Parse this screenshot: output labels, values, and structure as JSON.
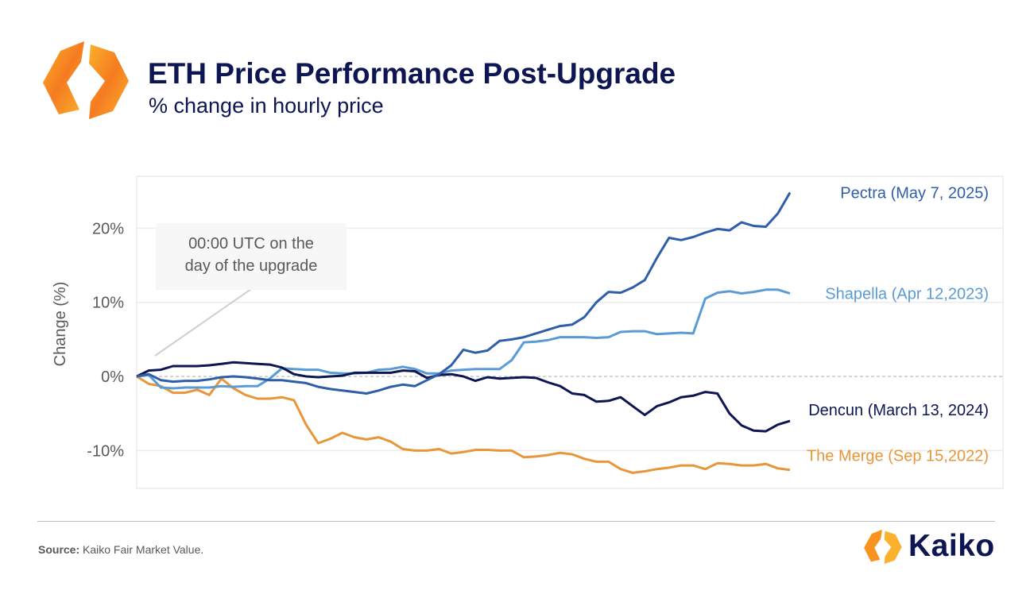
{
  "header": {
    "title": "ETH Price Performance Post-Upgrade",
    "subtitle": "% change in hourly price"
  },
  "footer": {
    "source_label": "Source:",
    "source_text": "Kaiko Fair Market Value.",
    "brand": "Kaiko"
  },
  "chart_data": {
    "type": "line",
    "title": "ETH Price Performance Post-Upgrade",
    "subtitle": "% change in hourly price",
    "xlabel": "",
    "ylabel": "Change (%)",
    "ylim": [
      -15.1,
      27.0
    ],
    "yticks": [
      {
        "value": 20,
        "label": "20%"
      },
      {
        "value": 10,
        "label": "10%"
      },
      {
        "value": 0,
        "label": "0%"
      },
      {
        "value": -10,
        "label": "-10%"
      }
    ],
    "grid": true,
    "annotation": "00:00 UTC on the day of the upgrade",
    "x": [
      0,
      1,
      2,
      3,
      4,
      5,
      6,
      7,
      8,
      9,
      10,
      11,
      12,
      13,
      14,
      15,
      16,
      17,
      18,
      19,
      20,
      21,
      22,
      23,
      24,
      25,
      26,
      27,
      28,
      29,
      30,
      31,
      32,
      33,
      34,
      35,
      36,
      37,
      38,
      39,
      40,
      41,
      42,
      43,
      44,
      45,
      46,
      47,
      48,
      49,
      50,
      51,
      52,
      53,
      54
    ],
    "series": [
      {
        "name": "The Merge (Sep 15,2022)",
        "color": "#E8963A",
        "values": [
          0,
          -1.0,
          -1.3,
          -2.2,
          -2.2,
          -1.8,
          -2.5,
          -0.3,
          -1.6,
          -2.5,
          -3.0,
          -3.0,
          -2.8,
          -3.2,
          -6.5,
          -9.0,
          -8.4,
          -7.6,
          -8.2,
          -8.5,
          -8.2,
          -8.8,
          -9.8,
          -10.0,
          -10.0,
          -9.8,
          -10.4,
          -10.2,
          -9.9,
          -9.9,
          -10.0,
          -10.0,
          -10.9,
          -10.8,
          -10.6,
          -10.3,
          -10.5,
          -11.1,
          -11.5,
          -11.5,
          -12.5,
          -13.0,
          -12.8,
          -12.5,
          -12.3,
          -12.0,
          -12.0,
          -12.5,
          -11.7,
          -11.8,
          -12.0,
          -12.0,
          -11.8,
          -12.4,
          -12.6
        ]
      },
      {
        "name": "Shapella (Apr 12,2023)",
        "color": "#5B9BD5",
        "values": [
          0,
          0.2,
          -1.5,
          -1.6,
          -1.5,
          -1.5,
          -1.5,
          -1.3,
          -1.4,
          -1.3,
          -1.3,
          -0.3,
          1.1,
          1.0,
          0.9,
          0.9,
          0.5,
          0.4,
          0.4,
          0.5,
          0.9,
          1.0,
          1.3,
          1.0,
          0.4,
          0.4,
          0.8,
          0.9,
          1.0,
          1.0,
          1.0,
          2.2,
          4.6,
          4.7,
          4.9,
          5.3,
          5.3,
          5.3,
          5.2,
          5.3,
          6.0,
          6.1,
          6.1,
          5.7,
          5.8,
          5.9,
          5.8,
          10.5,
          11.3,
          11.5,
          11.2,
          11.4,
          11.7,
          11.7,
          11.2
        ]
      },
      {
        "name": "Dencun (March 13, 2024)",
        "color": "#0D1552",
        "values": [
          0,
          0.8,
          0.9,
          1.4,
          1.4,
          1.4,
          1.5,
          1.7,
          1.9,
          1.8,
          1.7,
          1.6,
          1.2,
          0.3,
          0,
          -0.1,
          0,
          0.1,
          0.5,
          0.5,
          0.5,
          0.5,
          0.8,
          0.7,
          -0.2,
          0.2,
          0.3,
          0,
          -0.6,
          -0.1,
          -0.3,
          -0.2,
          -0.1,
          -0.2,
          -0.8,
          -1.3,
          -2.3,
          -2.5,
          -3.4,
          -3.3,
          -2.8,
          -4.0,
          -5.2,
          -4.0,
          -3.5,
          -2.8,
          -2.6,
          -2.1,
          -2.3,
          -5.0,
          -6.6,
          -7.3,
          -7.4,
          -6.5,
          -6.0
        ]
      },
      {
        "name": "Pectra (May 7, 2025)",
        "color": "#2E5EAA",
        "values": [
          0,
          0.3,
          -0.5,
          -0.7,
          -0.6,
          -0.6,
          -0.4,
          -0.1,
          0,
          -0.1,
          -0.3,
          -0.5,
          -0.5,
          -0.7,
          -0.9,
          -1.4,
          -1.7,
          -1.9,
          -2.1,
          -2.3,
          -1.9,
          -1.4,
          -1.1,
          -1.3,
          -0.5,
          0.3,
          1.5,
          3.6,
          3.2,
          3.5,
          4.8,
          5.0,
          5.3,
          5.8,
          6.3,
          6.8,
          7.0,
          8.0,
          10.0,
          11.4,
          11.3,
          12.0,
          13.0,
          16.0,
          18.7,
          18.4,
          18.8,
          19.4,
          19.9,
          19.7,
          20.8,
          20.3,
          20.2,
          22.0,
          24.8
        ]
      }
    ]
  }
}
